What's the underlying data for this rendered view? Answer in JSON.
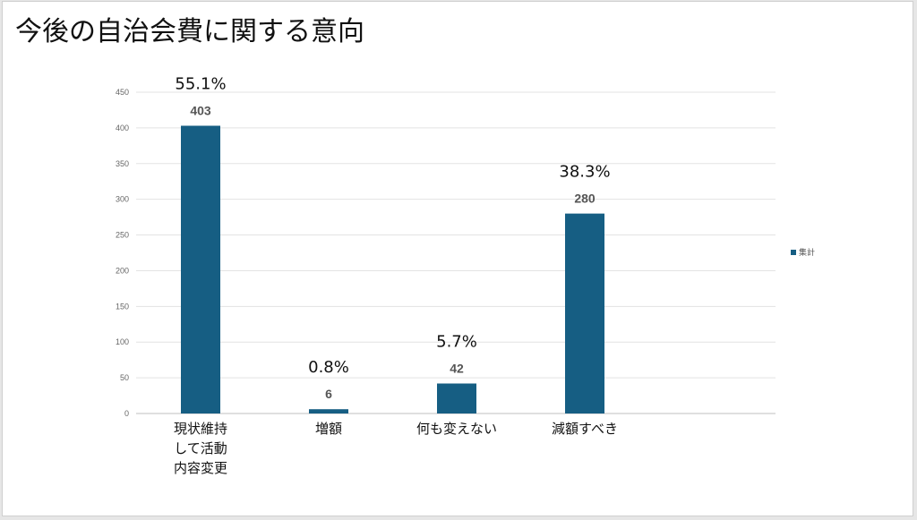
{
  "chart_data": {
    "type": "bar",
    "title": "今後の自治会費に関する意向",
    "categories": [
      [
        "現状維持",
        "して活動",
        "内容変更"
      ],
      [
        "増額"
      ],
      [
        "何も変えない"
      ],
      [
        "減額すべき"
      ]
    ],
    "series": [
      {
        "name": "集計",
        "values": [
          403,
          6,
          42,
          280
        ],
        "color": "#165e83"
      }
    ],
    "percent_labels": [
      "55.1%",
      "0.8%",
      "5.7%",
      "38.3%"
    ],
    "y_ticks": [
      0,
      50,
      100,
      150,
      200,
      250,
      300,
      350,
      400,
      450
    ],
    "ylim": [
      0,
      450
    ],
    "grid": true,
    "legend_position": "right"
  }
}
